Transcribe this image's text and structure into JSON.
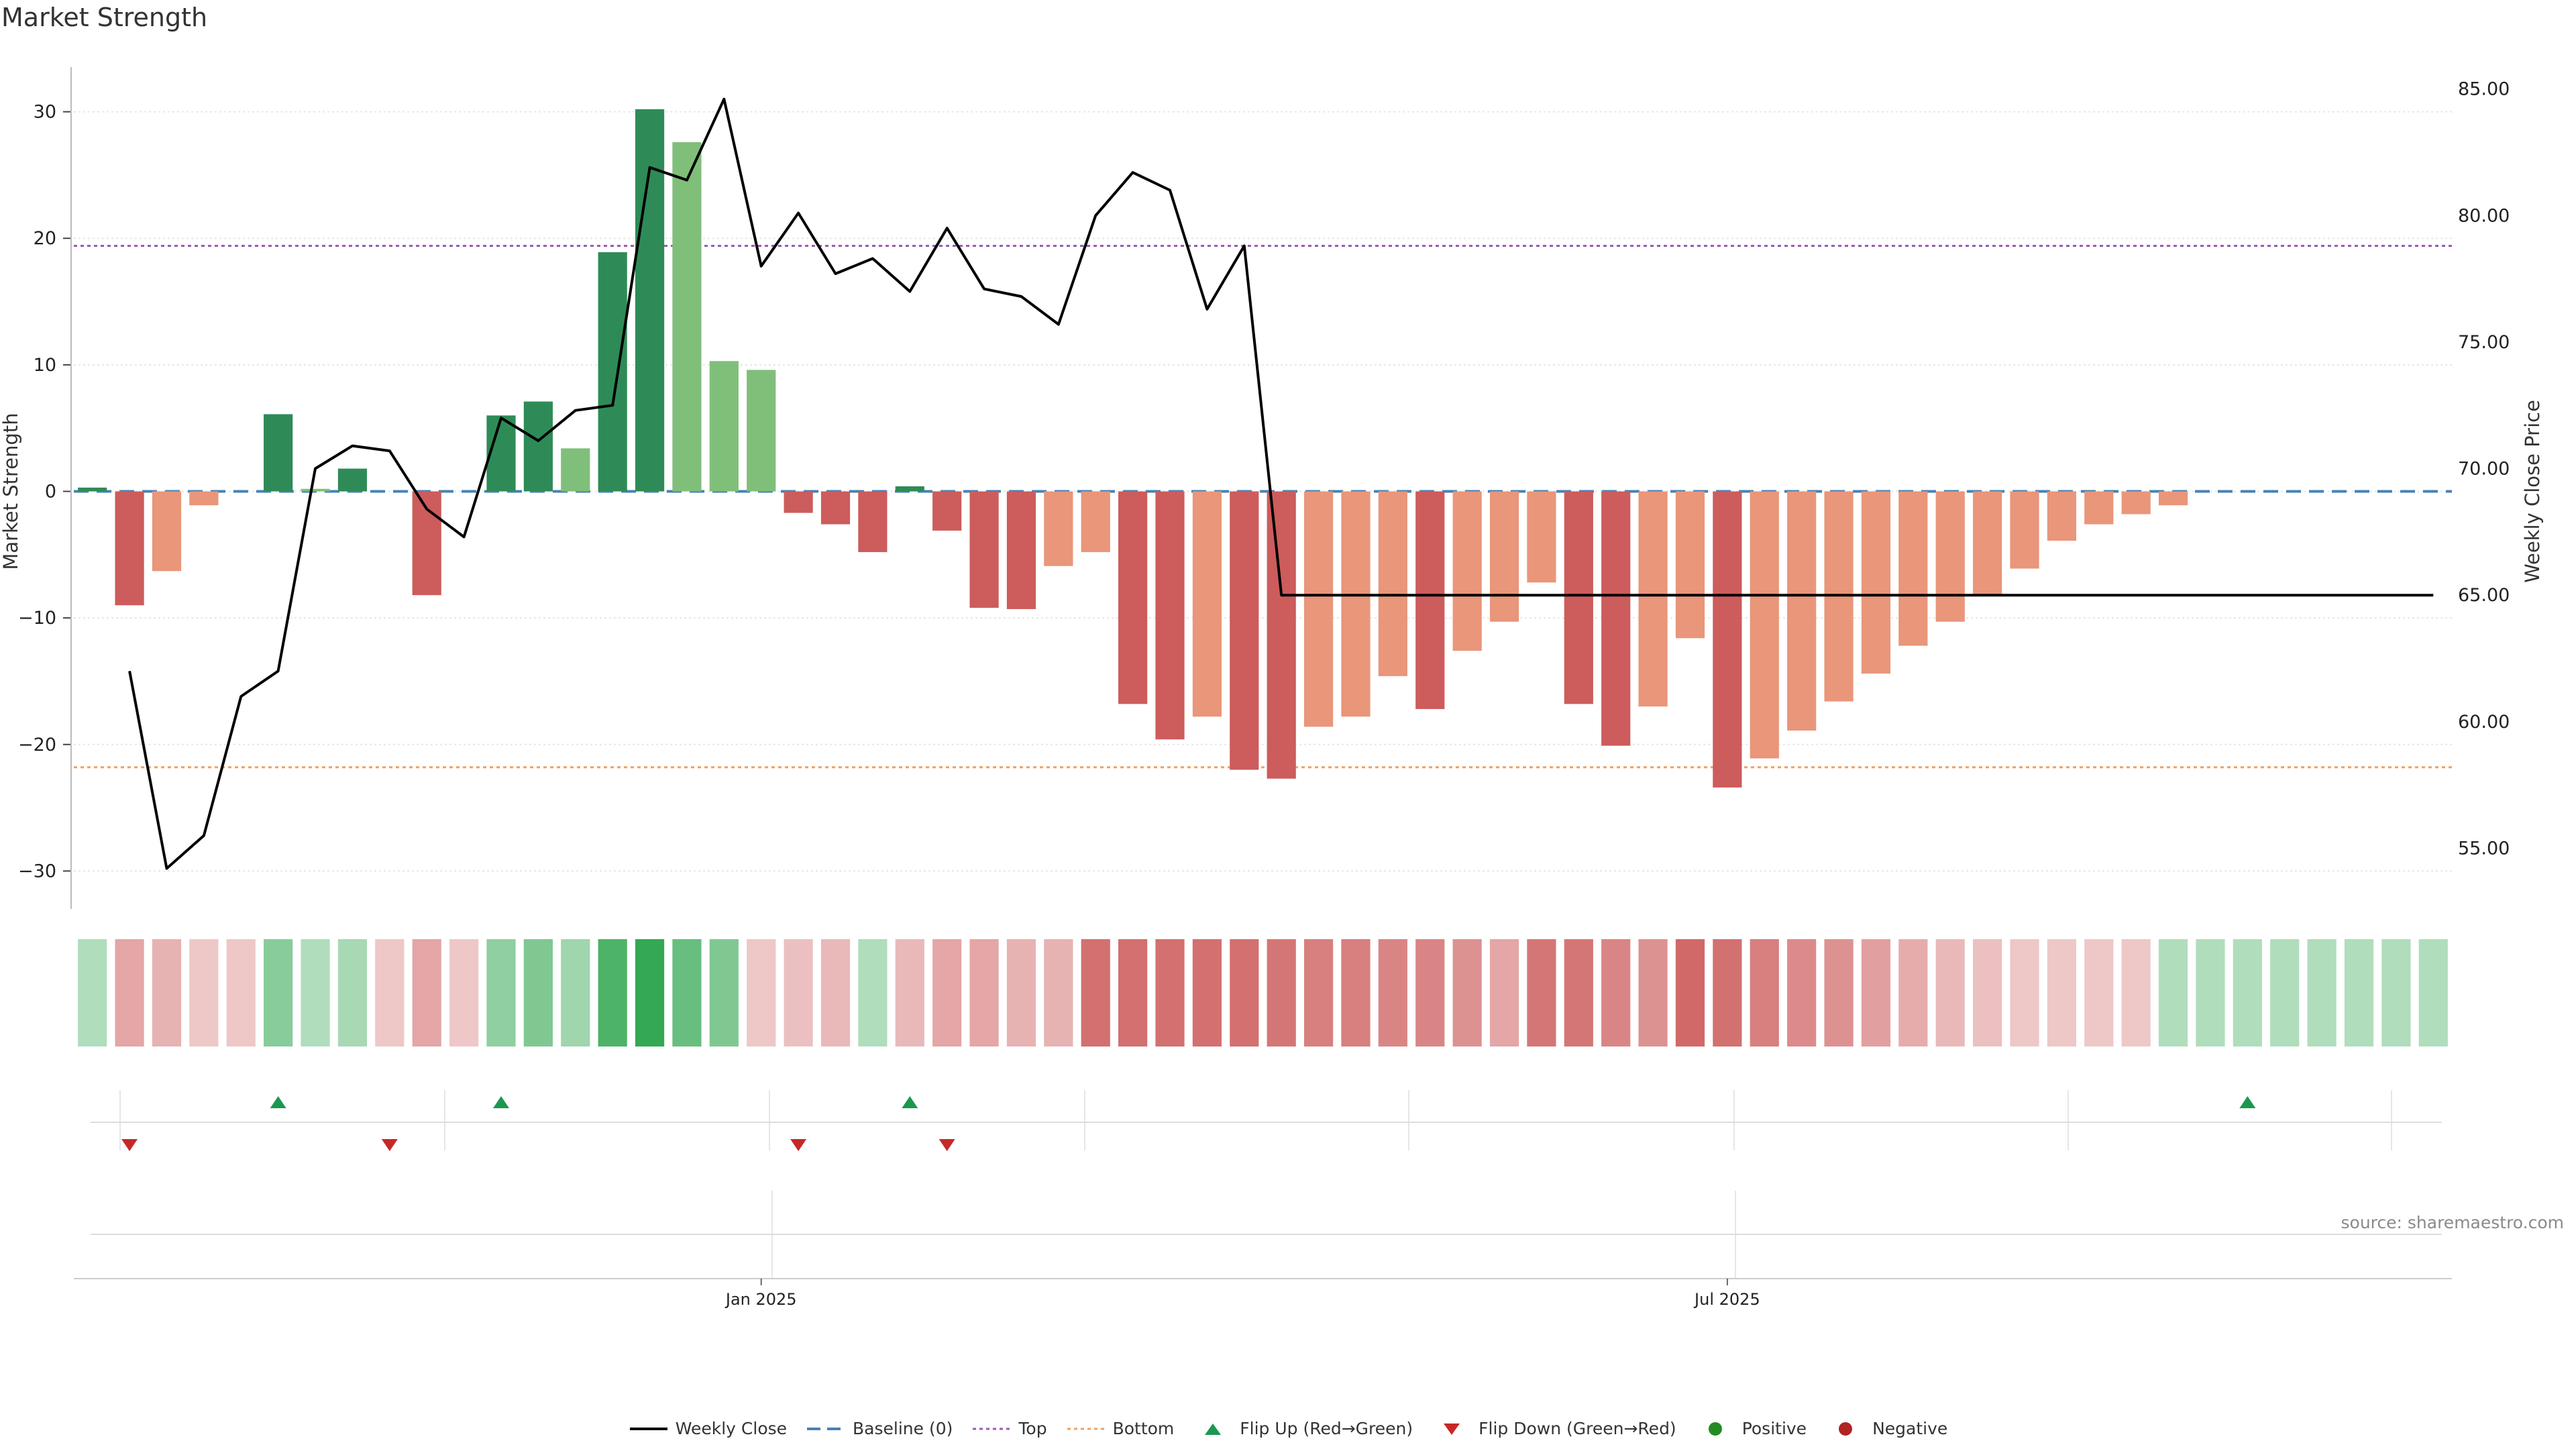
{
  "title": "Market Strength",
  "source": "source: sharemaestro.com",
  "colors": {
    "strong_green": "#2e8b57",
    "light_green": "#80bf7a",
    "strong_red": "#cd5c5c",
    "light_red": "#e9967a",
    "close_line": "#000000",
    "baseline": "#4682b4",
    "top_line": "#9b59b6",
    "bottom_line": "#f0a060",
    "flip_up": "#1a9850",
    "flip_down": "#c62828",
    "positive": "#228b22",
    "negative": "#b22222"
  },
  "chart_data": {
    "type": "bar",
    "title": "Market Strength",
    "ylabel": "Market Strength",
    "ylabel_right": "Weekly Close Price",
    "ylim": [
      -33,
      33
    ],
    "ylim_right": [
      52.6,
      85.6
    ],
    "yticks": [
      30,
      20,
      10,
      0,
      -10,
      -20,
      -30
    ],
    "yticklabels": [
      "30",
      "20",
      "10",
      "0",
      "−10",
      "−20",
      "−30"
    ],
    "yticks_right": [
      85,
      80,
      75,
      70,
      65,
      60,
      55
    ],
    "yticklabels_right": [
      "85.00",
      "80.00",
      "75.00",
      "70.00",
      "65.00",
      "60.00",
      "55.00"
    ],
    "top_level": 19.4,
    "bottom_level": -21.8,
    "xticks": [
      {
        "week": 18.5,
        "label": "Jan 2025"
      },
      {
        "week": 44.5,
        "label": "Jul 2025"
      }
    ],
    "n_weeks": 64,
    "strength": [
      0.3,
      -9,
      -6.3,
      -1.1,
      0,
      6.1,
      0.2,
      1.8,
      0,
      -8.2,
      0,
      6,
      7.1,
      3.4,
      18.9,
      30.2,
      27.6,
      10.3,
      9.6,
      -1.7,
      -2.6,
      -4.8,
      0.4,
      -3.1,
      -9.2,
      -9.3,
      -5.9,
      -4.8,
      -16.8,
      -19.6,
      -17.8,
      -22,
      -22.7,
      -18.6,
      -17.8,
      -14.6,
      -17.2,
      -12.6,
      -10.3,
      -7.2,
      -16.8,
      -20.1,
      -17,
      -11.6,
      -23.4,
      -21.1,
      -18.9,
      -16.6,
      -14.4,
      -12.2,
      -10.3,
      -8.2,
      -6.1,
      -3.9,
      -2.6,
      -1.8,
      -1.1,
      0,
      0,
      0,
      0,
      0,
      0,
      0
    ],
    "shade": [
      "S",
      "S",
      "L",
      "L",
      "L",
      "S",
      "L",
      "S",
      "L",
      "S",
      "L",
      "S",
      "S",
      "L",
      "S",
      "S",
      "L",
      "L",
      "L",
      "S",
      "S",
      "S",
      "S",
      "S",
      "S",
      "S",
      "L",
      "L",
      "S",
      "S",
      "L",
      "S",
      "S",
      "L",
      "L",
      "L",
      "S",
      "L",
      "L",
      "L",
      "S",
      "S",
      "L",
      "L",
      "S",
      "L",
      "L",
      "L",
      "L",
      "L",
      "L",
      "L",
      "L",
      "L",
      "L",
      "L",
      "L",
      "L",
      "L",
      "L",
      "L",
      "L",
      "L",
      "L"
    ],
    "weekly_close": [
      null,
      62,
      54.2,
      55.5,
      61,
      62,
      70,
      70.9,
      70.7,
      68.4,
      67.3,
      72,
      71.1,
      72.3,
      72.5,
      81.9,
      81.4,
      84.6,
      78,
      80.1,
      77.7,
      78.3,
      77,
      79.5,
      77.1,
      76.8,
      75.7,
      80,
      81.7,
      81,
      76.3,
      78.8,
      65,
      65,
      65,
      65,
      65,
      65,
      65,
      65,
      65,
      65,
      65,
      65,
      65,
      65,
      65,
      65,
      65,
      65,
      65,
      65,
      65,
      65,
      65,
      65,
      65,
      65,
      65,
      65,
      65,
      65,
      65,
      65
    ],
    "heat_strip": [
      0.25,
      -0.45,
      -0.35,
      -0.2,
      -0.2,
      0.5,
      0.25,
      0.3,
      -0.2,
      -0.45,
      -0.2,
      0.45,
      0.55,
      0.35,
      0.85,
      1,
      0.7,
      0.55,
      -0.2,
      -0.25,
      -0.3,
      0.25,
      -0.3,
      -0.45,
      -0.45,
      -0.35,
      -0.35,
      -0.85,
      -0.85,
      -0.85,
      -0.85,
      -0.85,
      -0.8,
      -0.75,
      -0.75,
      -0.7,
      -0.7,
      -0.6,
      -0.45,
      -0.8,
      -0.8,
      -0.7,
      -0.6,
      -0.9,
      -0.85,
      -0.75,
      -0.65,
      -0.6,
      -0.5,
      -0.4,
      -0.3,
      -0.25,
      -0.2,
      -0.2,
      -0.2,
      -0.2,
      0.25,
      0.25,
      0.25,
      0.25,
      0.25,
      0.25,
      0.25,
      0.25
    ],
    "flip_up_weeks": [
      5,
      11,
      22,
      58
    ],
    "flip_down_weeks": [
      1,
      8,
      19,
      23
    ],
    "legend": [
      {
        "key": "close",
        "label": "Weekly Close"
      },
      {
        "key": "baseline",
        "label": "Baseline (0)"
      },
      {
        "key": "top",
        "label": "Top"
      },
      {
        "key": "bottom",
        "label": "Bottom"
      },
      {
        "key": "flip_up",
        "label": "Flip Up (Red→Green)"
      },
      {
        "key": "flip_down",
        "label": "Flip Down (Green→Red)"
      },
      {
        "key": "positive",
        "label": "Positive"
      },
      {
        "key": "negative",
        "label": "Negative"
      }
    ]
  }
}
